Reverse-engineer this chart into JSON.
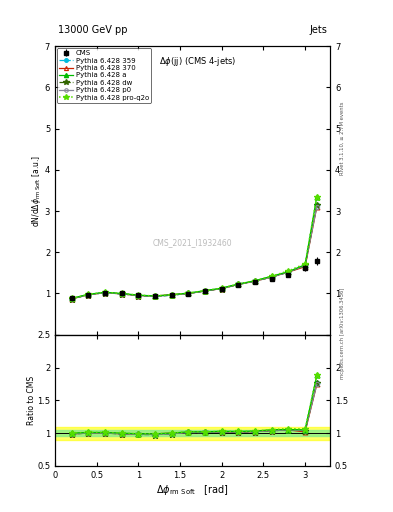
{
  "title_top": "13000 GeV pp",
  "title_right": "Jets",
  "plot_title": "Δϕ(jj) (CMS 4-jets)",
  "xlabel": "Δϕ_rm Soft   [rad]",
  "ylabel_main": "dN/dΔϕ_rm Soft [a.u.]",
  "ylabel_ratio": "Ratio to CMS",
  "watermark": "CMS_2021_I1932460",
  "right_label_top": "Rivet 3.1.10, ≥ 2.7M events",
  "right_label_bottom": "mcplots.cern.ch [arXiv:1306.3436]",
  "x_data": [
    0.2,
    0.4,
    0.6,
    0.8,
    1.0,
    1.2,
    1.4,
    1.6,
    1.8,
    2.0,
    2.2,
    2.4,
    2.6,
    2.8,
    3.0,
    3.14
  ],
  "cms_y": [
    0.88,
    0.97,
    1.02,
    1.0,
    0.97,
    0.95,
    0.97,
    0.99,
    1.05,
    1.1,
    1.2,
    1.27,
    1.35,
    1.45,
    1.62,
    1.78
  ],
  "cms_yerr": [
    0.03,
    0.02,
    0.02,
    0.02,
    0.02,
    0.02,
    0.02,
    0.02,
    0.02,
    0.03,
    0.03,
    0.03,
    0.04,
    0.05,
    0.07,
    0.1
  ],
  "p359_y": [
    0.87,
    0.97,
    1.02,
    0.99,
    0.95,
    0.93,
    0.96,
    1.0,
    1.06,
    1.12,
    1.22,
    1.3,
    1.4,
    1.52,
    1.68,
    3.15
  ],
  "p370_y": [
    0.87,
    0.97,
    1.02,
    0.99,
    0.95,
    0.94,
    0.97,
    1.0,
    1.06,
    1.12,
    1.22,
    1.3,
    1.4,
    1.52,
    1.65,
    3.1
  ],
  "pa_y": [
    0.88,
    0.98,
    1.03,
    1.0,
    0.96,
    0.94,
    0.97,
    1.01,
    1.07,
    1.13,
    1.23,
    1.31,
    1.42,
    1.53,
    1.7,
    3.35
  ],
  "pdw_y": [
    0.87,
    0.97,
    1.02,
    0.99,
    0.95,
    0.93,
    0.96,
    1.0,
    1.06,
    1.12,
    1.22,
    1.3,
    1.4,
    1.52,
    1.68,
    3.15
  ],
  "pp0_y": [
    0.87,
    0.97,
    1.02,
    0.99,
    0.95,
    0.93,
    0.96,
    1.0,
    1.06,
    1.12,
    1.22,
    1.3,
    1.4,
    1.52,
    1.68,
    3.1
  ],
  "pproq2o_y": [
    0.88,
    0.98,
    1.03,
    1.0,
    0.96,
    0.94,
    0.97,
    1.01,
    1.07,
    1.13,
    1.23,
    1.31,
    1.42,
    1.55,
    1.72,
    3.35
  ],
  "cms_color": "#000000",
  "p359_color": "#00bbdd",
  "p370_color": "#cc2200",
  "pa_color": "#00bb00",
  "pdw_color": "#336600",
  "pp0_color": "#888899",
  "pproq2o_color": "#55dd00",
  "main_ylim": [
    0.0,
    7.0
  ],
  "ratio_ylim": [
    0.5,
    2.5
  ],
  "xlim": [
    0.0,
    3.3
  ],
  "band_green_inner": 0.05,
  "band_yellow_outer": 0.1
}
